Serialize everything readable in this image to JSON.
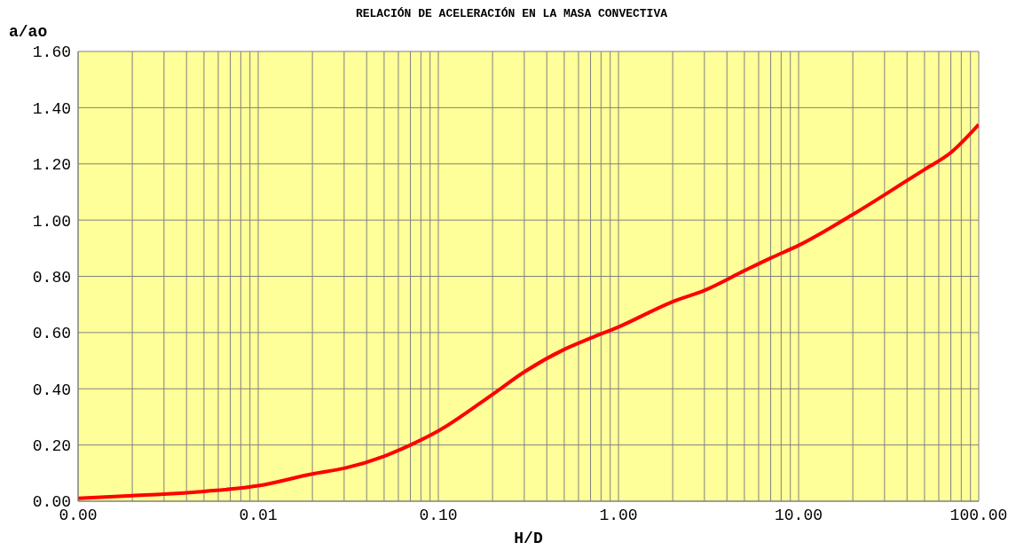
{
  "chart_data": {
    "type": "line",
    "title": "RELACIÓN DE ACELERACIÓN EN LA MASA CONVECTIVA",
    "xlabel": "H/D",
    "ylabel": "a/ao",
    "x": [
      0.001,
      0.002,
      0.003,
      0.005,
      0.01,
      0.02,
      0.03,
      0.05,
      0.07,
      0.1,
      0.2,
      0.3,
      0.5,
      0.7,
      1,
      2,
      3,
      5,
      7,
      10,
      20,
      30,
      50,
      70,
      100
    ],
    "series": [
      {
        "color": "#ff0000",
        "values": [
          0.01,
          0.02,
          0.025,
          0.035,
          0.055,
          0.097,
          0.117,
          0.16,
          0.2,
          0.25,
          0.38,
          0.46,
          0.54,
          0.58,
          0.62,
          0.71,
          0.75,
          0.82,
          0.865,
          0.91,
          1.02,
          1.09,
          1.18,
          1.24,
          1.34
        ]
      }
    ],
    "log": "x",
    "xlim": [
      0.001,
      100
    ],
    "xticks": [
      {
        "value": 0.001,
        "label": "0.00"
      },
      {
        "value": 0.01,
        "label": "0.01"
      },
      {
        "value": 0.1,
        "label": "0.10"
      },
      {
        "value": 1,
        "label": "1.00"
      },
      {
        "value": 10,
        "label": "10.00"
      },
      {
        "value": 100,
        "label": "100.00"
      }
    ],
    "ylim": [
      0,
      1.6
    ],
    "yticks": [
      {
        "value": 0,
        "label": "0.00"
      },
      {
        "value": 0.2,
        "label": "0.20"
      },
      {
        "value": 0.4,
        "label": "0.40"
      },
      {
        "value": 0.6,
        "label": "0.60"
      },
      {
        "value": 0.8,
        "label": "0.80"
      },
      {
        "value": 1,
        "label": "1.00"
      },
      {
        "value": 1.2,
        "label": "1.20"
      },
      {
        "value": 1.4,
        "label": "1.40"
      },
      {
        "value": 1.6,
        "label": "1.60"
      }
    ],
    "grid": true,
    "marker": "none",
    "line_style": "solid"
  }
}
